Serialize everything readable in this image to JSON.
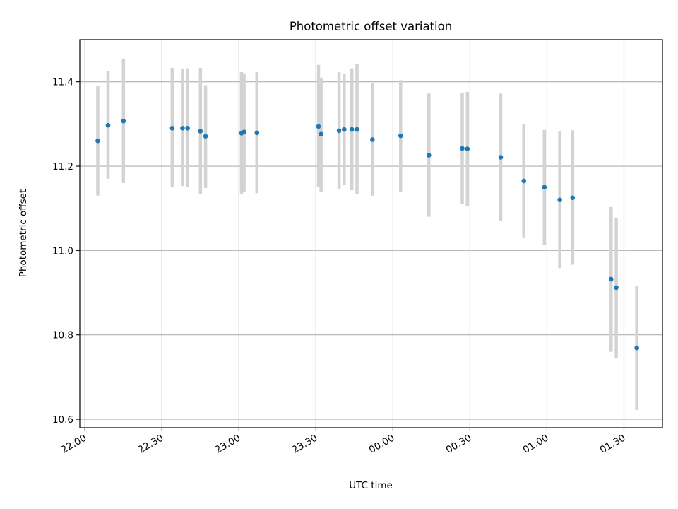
{
  "chart_data": {
    "type": "scatter",
    "title": "Photometric offset variation",
    "xlabel": "UTC time",
    "ylabel": "Photometric offset",
    "x_axis_kind": "time",
    "x_range": [
      "21:58",
      "01:45"
    ],
    "x_ticks": [
      "22:00",
      "22:30",
      "23:00",
      "23:30",
      "00:00",
      "00:30",
      "01:00",
      "01:30"
    ],
    "ylim": [
      10.58,
      11.5
    ],
    "y_ticks": [
      "10.6",
      "10.8",
      "11.0",
      "11.2",
      "11.4"
    ],
    "grid": true,
    "marker_color": "#1f77b4",
    "errorbar_color": "#d3d3d3",
    "series": [
      {
        "points": [
          {
            "t": "22:05",
            "y": 11.26,
            "lo": 11.13,
            "hi": 11.39
          },
          {
            "t": "22:09",
            "y": 11.297,
            "lo": 11.17,
            "hi": 11.425
          },
          {
            "t": "22:15",
            "y": 11.307,
            "lo": 11.16,
            "hi": 11.455
          },
          {
            "t": "22:34",
            "y": 11.29,
            "lo": 11.15,
            "hi": 11.433
          },
          {
            "t": "22:38",
            "y": 11.29,
            "lo": 11.153,
            "hi": 11.43
          },
          {
            "t": "22:40",
            "y": 11.29,
            "lo": 11.15,
            "hi": 11.432
          },
          {
            "t": "22:45",
            "y": 11.283,
            "lo": 11.133,
            "hi": 11.433
          },
          {
            "t": "22:47",
            "y": 11.271,
            "lo": 11.148,
            "hi": 11.392
          },
          {
            "t": "23:01",
            "y": 11.278,
            "lo": 11.133,
            "hi": 11.423
          },
          {
            "t": "23:02",
            "y": 11.281,
            "lo": 11.14,
            "hi": 11.42
          },
          {
            "t": "23:07",
            "y": 11.279,
            "lo": 11.136,
            "hi": 11.423
          },
          {
            "t": "23:31",
            "y": 11.294,
            "lo": 11.15,
            "hi": 11.44
          },
          {
            "t": "23:32",
            "y": 11.276,
            "lo": 11.14,
            "hi": 11.41
          },
          {
            "t": "23:39",
            "y": 11.284,
            "lo": 11.146,
            "hi": 11.423
          },
          {
            "t": "23:41",
            "y": 11.287,
            "lo": 11.156,
            "hi": 11.418
          },
          {
            "t": "23:44",
            "y": 11.287,
            "lo": 11.143,
            "hi": 11.432
          },
          {
            "t": "23:46",
            "y": 11.287,
            "lo": 11.133,
            "hi": 11.442
          },
          {
            "t": "23:52",
            "y": 11.263,
            "lo": 11.13,
            "hi": 11.396
          },
          {
            "t": "00:03",
            "y": 11.272,
            "lo": 11.14,
            "hi": 11.404
          },
          {
            "t": "00:14",
            "y": 11.226,
            "lo": 11.08,
            "hi": 11.372
          },
          {
            "t": "00:27",
            "y": 11.242,
            "lo": 11.11,
            "hi": 11.374
          },
          {
            "t": "00:29",
            "y": 11.241,
            "lo": 11.106,
            "hi": 11.376
          },
          {
            "t": "00:42",
            "y": 11.221,
            "lo": 11.07,
            "hi": 11.372
          },
          {
            "t": "00:51",
            "y": 11.165,
            "lo": 11.031,
            "hi": 11.299
          },
          {
            "t": "00:59",
            "y": 11.15,
            "lo": 11.013,
            "hi": 11.286
          },
          {
            "t": "01:05",
            "y": 11.12,
            "lo": 10.958,
            "hi": 11.282
          },
          {
            "t": "01:10",
            "y": 11.125,
            "lo": 10.966,
            "hi": 11.285
          },
          {
            "t": "01:25",
            "y": 10.932,
            "lo": 10.76,
            "hi": 11.103
          },
          {
            "t": "01:27",
            "y": 10.912,
            "lo": 10.745,
            "hi": 11.078
          },
          {
            "t": "01:35",
            "y": 10.769,
            "lo": 10.622,
            "hi": 10.915
          }
        ]
      }
    ]
  }
}
